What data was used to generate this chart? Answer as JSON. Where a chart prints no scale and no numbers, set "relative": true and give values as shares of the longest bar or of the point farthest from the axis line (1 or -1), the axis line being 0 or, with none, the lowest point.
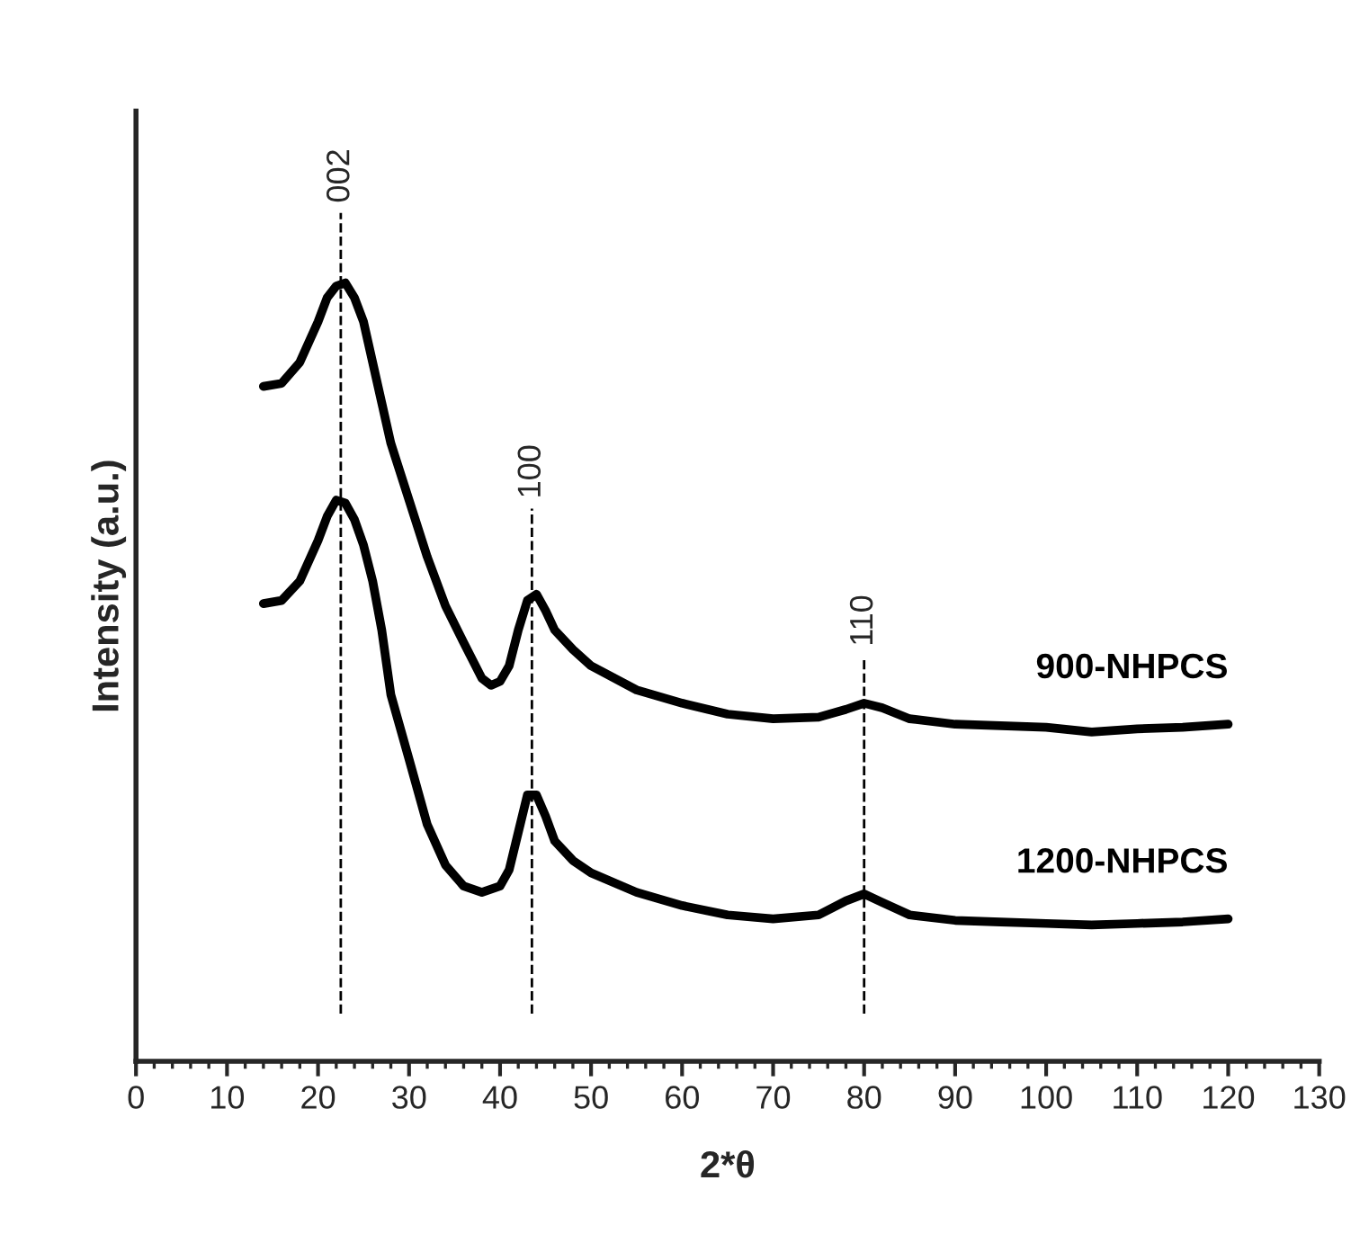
{
  "chart_data": {
    "type": "line",
    "relative": true,
    "xlabel": "2*θ",
    "ylabel": "Intensity (a.u.)",
    "xlim": [
      0,
      130
    ],
    "xticks": [
      0,
      10,
      20,
      30,
      40,
      50,
      60,
      70,
      80,
      90,
      100,
      110,
      120,
      130
    ],
    "legend": false,
    "grid": false,
    "line_style": "solid",
    "marker": "none",
    "series": [
      {
        "name": "900-NHPCS",
        "color": "#000000",
        "x": [
          14,
          16,
          18,
          20,
          21,
          22,
          23,
          24,
          25,
          26,
          27,
          28,
          30,
          32,
          34,
          36,
          38,
          39,
          40,
          41,
          42,
          43,
          44,
          45,
          46,
          48,
          50,
          55,
          60,
          65,
          70,
          75,
          78,
          80,
          82,
          85,
          90,
          95,
          100,
          105,
          110,
          115,
          120
        ],
        "values": [
          0.867,
          0.871,
          0.898,
          0.95,
          0.981,
          0.996,
          1.0,
          0.981,
          0.95,
          0.898,
          0.846,
          0.794,
          0.721,
          0.648,
          0.585,
          0.538,
          0.492,
          0.483,
          0.488,
          0.508,
          0.554,
          0.592,
          0.6,
          0.579,
          0.554,
          0.529,
          0.508,
          0.477,
          0.46,
          0.446,
          0.44,
          0.442,
          0.452,
          0.46,
          0.454,
          0.44,
          0.433,
          0.431,
          0.429,
          0.423,
          0.427,
          0.429,
          0.433
        ]
      },
      {
        "name": "1200-NHPCS",
        "color": "#000000",
        "x": [
          14,
          16,
          18,
          20,
          21,
          22,
          23,
          24,
          25,
          26,
          27,
          28,
          30,
          32,
          34,
          36,
          38,
          40,
          41,
          42,
          43,
          44,
          45,
          46,
          48,
          50,
          55,
          60,
          65,
          70,
          75,
          78,
          80,
          82,
          85,
          90,
          95,
          100,
          105,
          110,
          115,
          120
        ],
        "values": [
          0.588,
          0.592,
          0.617,
          0.669,
          0.7,
          0.721,
          0.717,
          0.696,
          0.663,
          0.617,
          0.554,
          0.471,
          0.388,
          0.304,
          0.252,
          0.225,
          0.217,
          0.225,
          0.246,
          0.294,
          0.342,
          0.342,
          0.315,
          0.283,
          0.258,
          0.242,
          0.217,
          0.2,
          0.188,
          0.183,
          0.188,
          0.206,
          0.215,
          0.204,
          0.188,
          0.181,
          0.179,
          0.177,
          0.175,
          0.177,
          0.179,
          0.183
        ]
      }
    ],
    "ref_lines": [
      {
        "axis": "x",
        "value": 22.5,
        "color": "#000000",
        "line_style": "dashed"
      },
      {
        "axis": "x",
        "value": 43.5,
        "color": "#000000",
        "line_style": "dashed"
      },
      {
        "axis": "x",
        "value": 80,
        "color": "#000000",
        "line_style": "dashed"
      }
    ],
    "annotations": [
      {
        "text": "002",
        "x": 22.5,
        "y": 1.09
      },
      {
        "text": "100",
        "x": 43.5,
        "y": 0.71
      },
      {
        "text": "110",
        "x": 80,
        "y": 0.52
      }
    ]
  }
}
